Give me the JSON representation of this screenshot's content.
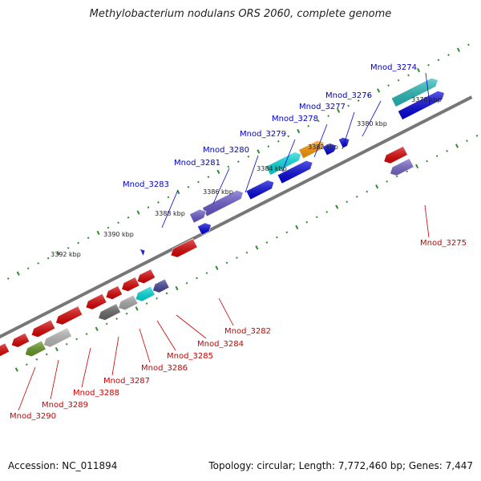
{
  "header": {
    "title": "Methylobacterium nodulans ORS 2060, complete genome"
  },
  "footer": {
    "accession": "Accession: NC_011894",
    "summary": "Topology: circular; Length: 7,772,460 bp; Genes: 7,447"
  },
  "colors": {
    "backbone": "#777777",
    "tick_mark": "#2e8b2e",
    "forward_label": "#0000cc",
    "reverse_label": "#cc0000"
  },
  "scale_labels": [
    "3378 kbp",
    "3380 kbp",
    "3382 kbp",
    "3384 kbp",
    "3386 kbp",
    "3388 kbp",
    "3390 kbp",
    "3392 kbp"
  ],
  "genes": {
    "forward": [
      "Mnod_3274",
      "Mnod_3276",
      "Mnod_3277",
      "Mnod_3278",
      "Mnod_3279",
      "Mnod_3280",
      "Mnod_3281",
      "Mnod_3283"
    ],
    "reverse": [
      "Mnod_3275",
      "Mnod_3282",
      "Mnod_3284",
      "Mnod_3285",
      "Mnod_3286",
      "Mnod_3287",
      "Mnod_3288",
      "Mnod_3289",
      "Mnod_3290"
    ]
  }
}
